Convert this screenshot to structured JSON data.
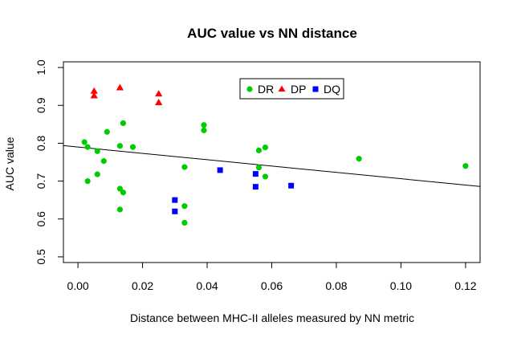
{
  "chart_data": {
    "type": "scatter",
    "title": "AUC value vs NN distance",
    "xlabel": "Distance between MHC-II alleles measured by NN metric",
    "ylabel": "AUC value",
    "xlim": [
      -0.0045,
      0.1245
    ],
    "ylim": [
      0.485,
      1.015
    ],
    "xticks": [
      0.0,
      0.02,
      0.04,
      0.06,
      0.08,
      0.1,
      0.12
    ],
    "xtick_labels": [
      "0.00",
      "0.02",
      "0.04",
      "0.06",
      "0.08",
      "0.10",
      "0.12"
    ],
    "yticks": [
      0.5,
      0.6,
      0.7,
      0.8,
      0.9,
      1.0
    ],
    "ytick_labels": [
      "0.5",
      "0.6",
      "0.7",
      "0.8",
      "0.9",
      "1.0"
    ],
    "grid": false,
    "legend_position": "top-center",
    "series": [
      {
        "name": "DR",
        "marker": "circle",
        "color": "#00cd00",
        "points": [
          [
            0.002,
            0.803
          ],
          [
            0.003,
            0.79
          ],
          [
            0.003,
            0.7
          ],
          [
            0.006,
            0.779
          ],
          [
            0.006,
            0.718
          ],
          [
            0.008,
            0.753
          ],
          [
            0.009,
            0.83
          ],
          [
            0.013,
            0.793
          ],
          [
            0.013,
            0.68
          ],
          [
            0.013,
            0.625
          ],
          [
            0.014,
            0.853
          ],
          [
            0.014,
            0.67
          ],
          [
            0.017,
            0.79
          ],
          [
            0.033,
            0.737
          ],
          [
            0.033,
            0.634
          ],
          [
            0.033,
            0.59
          ],
          [
            0.039,
            0.848
          ],
          [
            0.039,
            0.834
          ],
          [
            0.056,
            0.781
          ],
          [
            0.056,
            0.736
          ],
          [
            0.058,
            0.789
          ],
          [
            0.058,
            0.712
          ],
          [
            0.087,
            0.759
          ],
          [
            0.12,
            0.74
          ]
        ]
      },
      {
        "name": "DP",
        "marker": "triangle",
        "color": "#ff0000",
        "points": [
          [
            0.005,
            0.937
          ],
          [
            0.005,
            0.925
          ],
          [
            0.013,
            0.946
          ],
          [
            0.025,
            0.93
          ],
          [
            0.025,
            0.907
          ]
        ]
      },
      {
        "name": "DQ",
        "marker": "square",
        "color": "#0000ff",
        "points": [
          [
            0.03,
            0.65
          ],
          [
            0.03,
            0.62
          ],
          [
            0.044,
            0.729
          ],
          [
            0.055,
            0.719
          ],
          [
            0.055,
            0.685
          ],
          [
            0.066,
            0.688
          ]
        ]
      }
    ],
    "regression_line": {
      "intercept": 0.79,
      "slope": -0.837
    }
  }
}
